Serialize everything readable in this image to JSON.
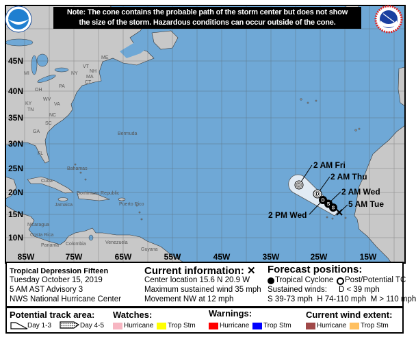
{
  "note": {
    "line1": "Note: The cone contains the probable path of the storm center but does not show",
    "line2": "the size of the storm. Hazardous conditions can occur outside of the cone."
  },
  "logos": {
    "left": "NOAA",
    "right": "NATIONAL WEATHER SERVICE"
  },
  "map": {
    "latitude_labels": [
      "45N",
      "40N",
      "35N",
      "30N",
      "25N",
      "20N",
      "15N",
      "10N"
    ],
    "longitude_labels": [
      "85W",
      "75W",
      "65W",
      "55W",
      "45W",
      "35W",
      "25W",
      "15W"
    ],
    "state_labels": [
      "ME",
      "VT",
      "NH",
      "MA",
      "CT",
      "NY",
      "MI",
      "PA",
      "OH",
      "WV",
      "VA",
      "KY",
      "TN",
      "NC",
      "SC",
      "GA",
      "FL"
    ],
    "place_labels": [
      "Bermuda",
      "Bahamas",
      "Cuba",
      "Dominican Republic",
      "Puerto Rico",
      "Jamaica",
      "Nicaragua",
      "Costa Rica",
      "Panama",
      "Colombia",
      "Venezuela",
      "Guyana"
    ],
    "ocean_color": "#6fa8d6",
    "land_color": "#c8c8c8",
    "cone_color": "#e2ebf4",
    "track": {
      "points": [
        {
          "symbol": "X",
          "type": "current",
          "label": "5 AM Tue"
        },
        {
          "symbol": "S",
          "type": "tropical-cyclone",
          "label": ""
        },
        {
          "symbol": "S",
          "type": "tropical-cyclone",
          "label": "2 AM Wed"
        },
        {
          "symbol": "D",
          "type": "tropical-cyclone",
          "label": "2 PM Wed"
        },
        {
          "symbol": "D",
          "type": "post-potential",
          "label": "2 AM Thu"
        },
        {
          "symbol": "D",
          "type": "post-potential",
          "label": "2 AM Fri"
        }
      ]
    }
  },
  "info": {
    "storm_name": "Tropical Depression Fifteen",
    "date": "Tuesday October 15, 2019",
    "advisory": "5 AM AST Advisory 3",
    "center": "NWS National Hurricane Center",
    "current_title": "Current information: ✕",
    "location": "Center location 15.6 N 20.9 W",
    "max_wind": "Maximum sustained wind 35 mph",
    "movement": "Movement NW at 12 mph",
    "forecast_title": "Forecast positions:",
    "tropical_cyclone": "Tropical Cyclone",
    "post_potential": "Post/Potential TC",
    "sustained_winds": "Sustained winds:",
    "d_range": "D < 39 mph",
    "shm_range": "S 39-73 mph  H 74-110 mph  M > 110 mph"
  },
  "legend": {
    "track_title": "Potential track area:",
    "day13": "Day 1-3",
    "day45": "Day 4-5",
    "watches_title": "Watches:",
    "warnings_title": "Warnings:",
    "wind_title": "Current wind extent:",
    "hurricane": "Hurricane",
    "trop_stm": "Trop Stm",
    "colors": {
      "watch_hurricane": "#f7b6c2",
      "watch_trop_stm": "#ffff00",
      "warning_hurricane": "#ff0000",
      "warning_trop_stm": "#0000ff",
      "wind_hurricane": "#a04848",
      "wind_trop_stm": "#ffc060"
    }
  }
}
